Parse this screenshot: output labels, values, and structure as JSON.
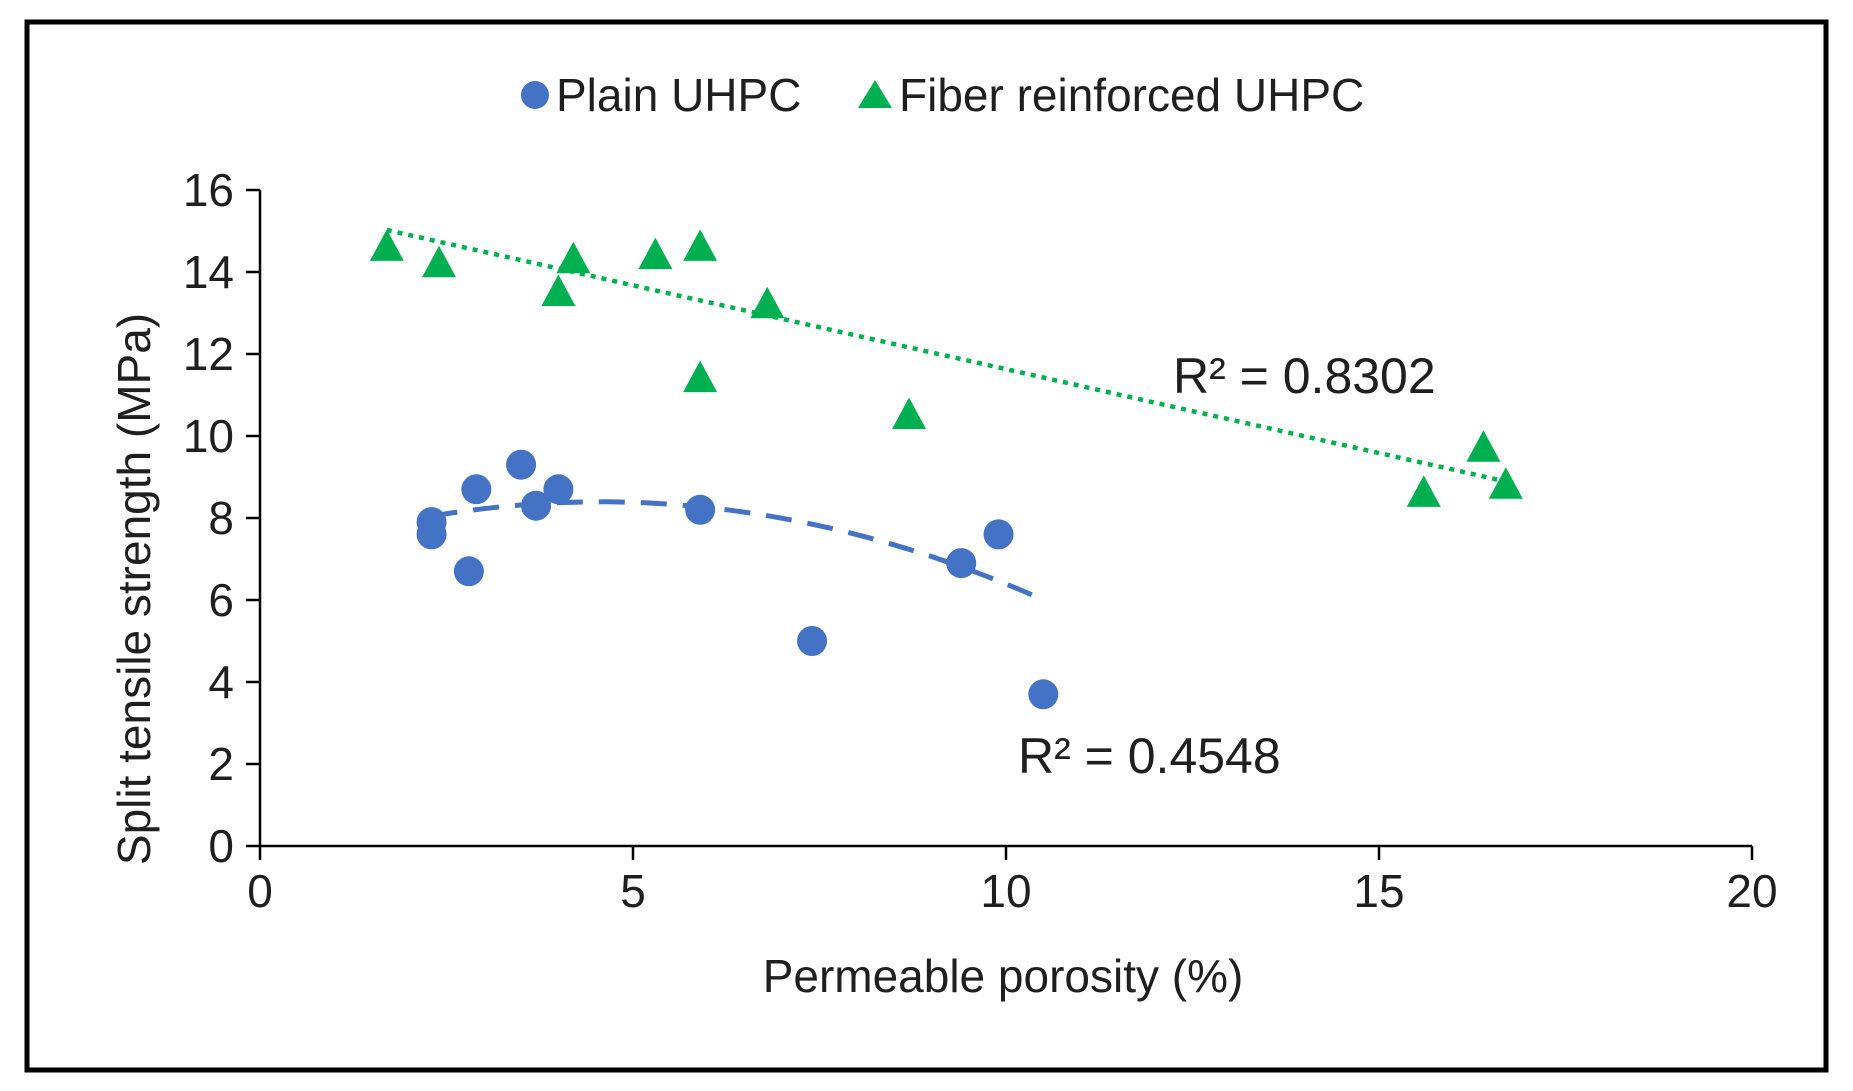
{
  "chart_data": {
    "type": "scatter",
    "title": "",
    "xlabel": "Permeable porosity (%)",
    "ylabel": "Split tensile strength (MPa)",
    "xlim": [
      0,
      20
    ],
    "ylim": [
      0,
      16
    ],
    "x_ticks": [
      0,
      5,
      10,
      15,
      20
    ],
    "y_ticks": [
      0,
      2,
      4,
      6,
      8,
      10,
      12,
      14,
      16
    ],
    "grid": false,
    "legend_position": "top-center",
    "series": [
      {
        "name": "Plain UHPC",
        "marker": "circle",
        "color": "#4472C4",
        "x": [
          2.3,
          2.3,
          2.8,
          2.9,
          3.5,
          3.7,
          4.0,
          5.9,
          7.4,
          9.4,
          9.9,
          10.5
        ],
        "y": [
          7.9,
          7.6,
          6.7,
          8.7,
          9.3,
          8.3,
          8.7,
          8.2,
          5.0,
          6.9,
          7.6,
          3.7
        ],
        "trendline": {
          "type": "polynomial",
          "style": "dashed",
          "x_range": [
            2.3,
            10.5
          ],
          "coefficients": [
            6.977,
            0.6204,
            -0.0679
          ],
          "r_squared_label": "R² = 0.4548"
        }
      },
      {
        "name": "Fiber reinforced UHPC",
        "marker": "triangle",
        "color": "#00B050",
        "x": [
          1.7,
          2.4,
          4.0,
          4.2,
          5.3,
          5.9,
          5.9,
          6.8,
          8.7,
          15.6,
          16.4,
          16.7
        ],
        "y": [
          14.6,
          14.2,
          13.5,
          14.3,
          14.4,
          14.6,
          11.4,
          13.2,
          10.5,
          8.6,
          9.7,
          8.8
        ],
        "trendline": {
          "type": "linear",
          "style": "dotted",
          "x_range": [
            1.7,
            16.7
          ],
          "coefficients": [
            15.72,
            -0.409
          ],
          "r_squared_label": "R² = 0.8302"
        }
      }
    ]
  }
}
